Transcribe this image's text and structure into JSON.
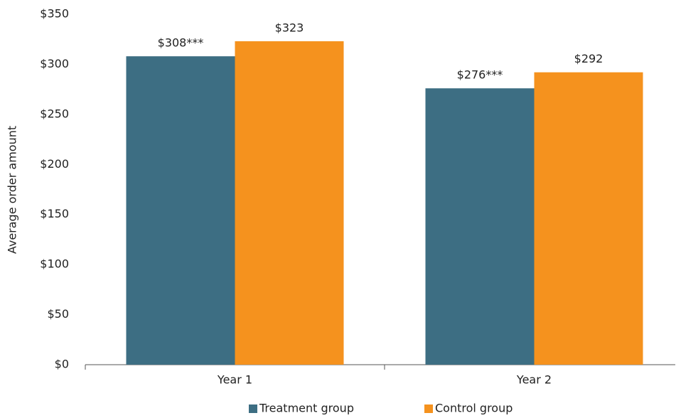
{
  "chart_data": {
    "type": "bar",
    "y_label": "Average order amount",
    "categories": [
      "Year 1",
      "Year 2"
    ],
    "series": [
      {
        "name": "Treatment group",
        "color": "#3d6e83",
        "values": [
          308,
          276
        ],
        "value_labels": [
          "$308***",
          "$276***"
        ]
      },
      {
        "name": "Control group",
        "color": "#f5921e",
        "values": [
          323,
          292
        ],
        "value_labels": [
          "$323",
          "$292"
        ]
      }
    ],
    "ylim": [
      0,
      350
    ],
    "yticks": [
      {
        "value": 0,
        "label": "$0"
      },
      {
        "value": 50,
        "label": "$50"
      },
      {
        "value": 100,
        "label": "$100"
      },
      {
        "value": 150,
        "label": "$150"
      },
      {
        "value": 200,
        "label": "$200"
      },
      {
        "value": 250,
        "label": "$250"
      },
      {
        "value": 300,
        "label": "$300"
      },
      {
        "value": 350,
        "label": "$350"
      }
    ],
    "grid": false,
    "legend": "bottom"
  }
}
